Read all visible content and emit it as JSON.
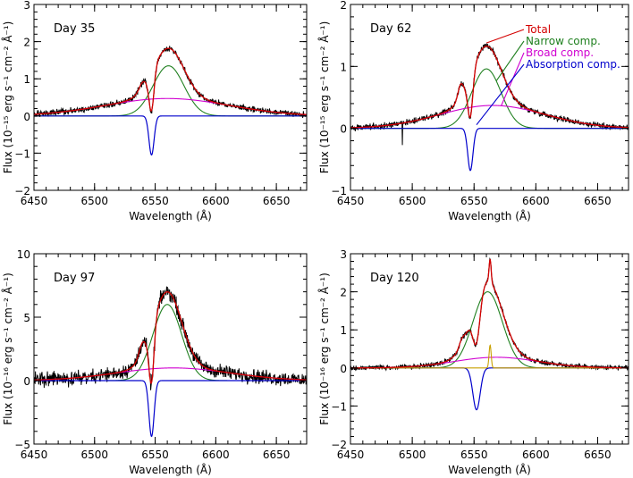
{
  "chart_data": [
    {
      "type": "line",
      "title": "Day 35",
      "xlabel": "Wavelength (Å)",
      "ylabel": "Flux (10⁻¹⁵ erg s⁻¹ cm⁻² Å⁻¹)",
      "xlim": [
        6450,
        6675
      ],
      "ylim": [
        -2,
        3
      ],
      "xticks": [
        "6450",
        "6500",
        "6550",
        "6600",
        "6650"
      ],
      "yticks": [
        "−2",
        "−1",
        "0",
        "1",
        "2",
        "3"
      ],
      "colors": {
        "observed": "#000000",
        "total": "#d40000",
        "narrow": "#208020",
        "broad": "#d000d0",
        "absorption": "#0000cc"
      },
      "components": {
        "narrow": {
          "center": 6561,
          "amp": 1.35,
          "fwhm": 30
        },
        "broad": {
          "center": 6560,
          "amp": 0.47,
          "fwhm": 120
        },
        "absorption": {
          "center": 6547,
          "amp": -1.05,
          "fwhm": 5
        },
        "extra": {
          "center": 6539,
          "amp": 0.15,
          "fwhm": 6
        }
      },
      "noise": 0.05
    },
    {
      "type": "line",
      "title": "Day 62",
      "xlabel": "Wavelength (Å)",
      "ylabel": "Flux (10⁻¹⁵ erg s⁻¹ cm⁻² Å⁻¹)",
      "xlim": [
        6450,
        6675
      ],
      "ylim": [
        -1,
        2
      ],
      "xticks": [
        "6450",
        "6500",
        "6550",
        "6600",
        "6650"
      ],
      "yticks": [
        "−1",
        "0",
        "1",
        "2"
      ],
      "legend": [
        "Total",
        "Narrow comp.",
        "Broad comp.",
        "Absorption comp."
      ],
      "legend_placement": "top-right",
      "colors": {
        "observed": "#000000",
        "total": "#d40000",
        "narrow": "#208020",
        "broad": "#d000d0",
        "absorption": "#0000cc"
      },
      "components": {
        "narrow": {
          "center": 6560,
          "amp": 0.96,
          "fwhm": 28
        },
        "broad": {
          "center": 6565,
          "amp": 0.37,
          "fwhm": 100
        },
        "absorption": {
          "center": 6547,
          "amp": -0.68,
          "fwhm": 5
        },
        "extra": {
          "center": 6539,
          "amp": 0.2,
          "fwhm": 5
        }
      },
      "spike": {
        "x": 6492,
        "y": -0.27
      },
      "noise": 0.03
    },
    {
      "type": "line",
      "title": "Day 97",
      "xlabel": "Wavelength (Å)",
      "ylabel": "Flux (10⁻¹⁶ erg s⁻¹ cm⁻² Å⁻¹)",
      "xlim": [
        6450,
        6675
      ],
      "ylim": [
        -5,
        10
      ],
      "xticks": [
        "6450",
        "6500",
        "6550",
        "6600",
        "6650"
      ],
      "yticks": [
        "−5",
        "0",
        "5",
        "10"
      ],
      "colors": {
        "observed": "#000000",
        "total": "#d40000",
        "narrow": "#208020",
        "broad": "#d000d0",
        "absorption": "#0000cc"
      },
      "components": {
        "narrow": {
          "center": 6560,
          "amp": 6.0,
          "fwhm": 28
        },
        "broad": {
          "center": 6565,
          "amp": 1.0,
          "fwhm": 110
        },
        "absorption": {
          "center": 6547,
          "amp": -4.4,
          "fwhm": 5
        },
        "extra": {
          "center": 6539,
          "amp": 0.8,
          "fwhm": 6
        }
      },
      "noise": 0.35
    },
    {
      "type": "line",
      "title": "Day 120",
      "xlabel": "Wavelength (Å)",
      "ylabel": "Flux (10⁻¹⁶ erg s⁻¹ cm⁻² Å⁻¹)",
      "xlim": [
        6450,
        6675
      ],
      "ylim": [
        -2,
        3
      ],
      "xticks": [
        "6450",
        "6500",
        "6550",
        "6600",
        "6650"
      ],
      "yticks": [
        "−2",
        "−1",
        "0",
        "1",
        "2",
        "3"
      ],
      "colors": {
        "observed": "#000000",
        "total": "#d40000",
        "narrow": "#208020",
        "broad": "#d000d0",
        "absorption": "#0000cc",
        "unresolved": "#c8a000"
      },
      "components": {
        "narrow": {
          "center": 6561,
          "amp": 2.0,
          "fwhm": 28
        },
        "broad": {
          "center": 6568,
          "amp": 0.28,
          "fwhm": 80
        },
        "absorption": {
          "center": 6552,
          "amp": -1.1,
          "fwhm": 7
        },
        "extra": {
          "center": 6540,
          "amp": 0.15,
          "fwhm": 5
        },
        "unresolved": {
          "center": 6563,
          "amp": 0.6,
          "fwhm": 2
        }
      },
      "noise": 0.04
    }
  ]
}
